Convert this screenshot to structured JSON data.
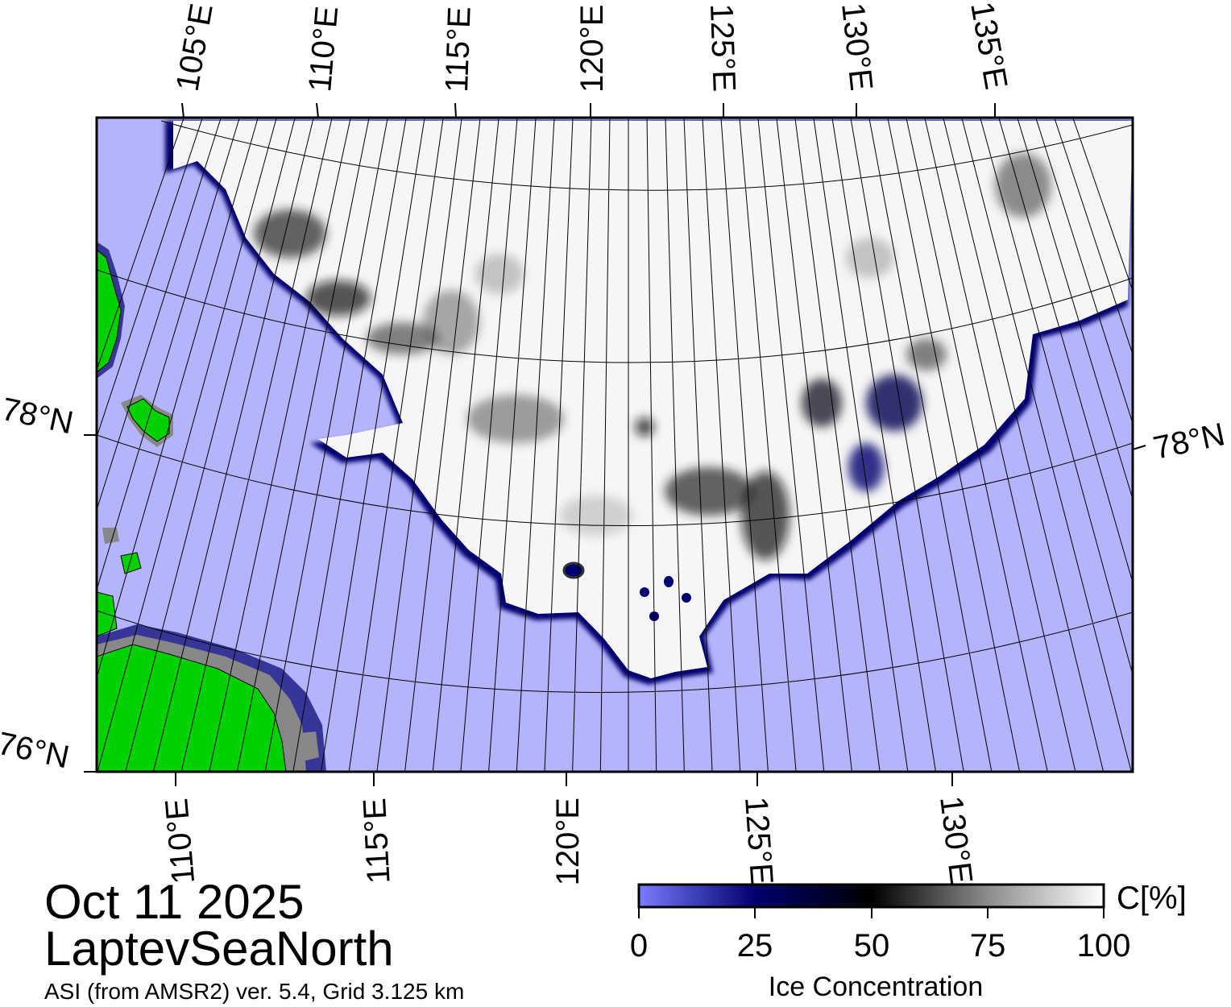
{
  "map": {
    "region": "LaptevSeaNorth",
    "date": "Oct 11 2025",
    "product": "ASI (from AMSR2) ver. 5.4,  Grid 3.125 km",
    "top_lon_labels": [
      "105°E",
      "110°E",
      "115°E",
      "120°E",
      "125°E",
      "130°E",
      "135°E"
    ],
    "bottom_lon_labels": [
      "110°E",
      "115°E",
      "120°E",
      "125°E",
      "130°E"
    ],
    "lat_labels": {
      "left_upper": "78°N",
      "left_lower": "76°N",
      "right": "78°N"
    },
    "colors": {
      "water": "#b4b4fc",
      "land": "#00d200",
      "ice_high": "#ffffff",
      "ice_edge": "#00006e"
    }
  },
  "colorbar": {
    "title": "Ice Concentration",
    "unit": "C[%]",
    "ticks": [
      "0",
      "25",
      "50",
      "75",
      "100"
    ],
    "range": [
      0,
      100
    ],
    "stops": [
      {
        "value": 0,
        "color": "#7b7bff"
      },
      {
        "value": 25,
        "color": "#00006e"
      },
      {
        "value": 50,
        "color": "#000000"
      },
      {
        "value": 75,
        "color": "#8c8c8c"
      },
      {
        "value": 100,
        "color": "#ffffff"
      }
    ]
  }
}
